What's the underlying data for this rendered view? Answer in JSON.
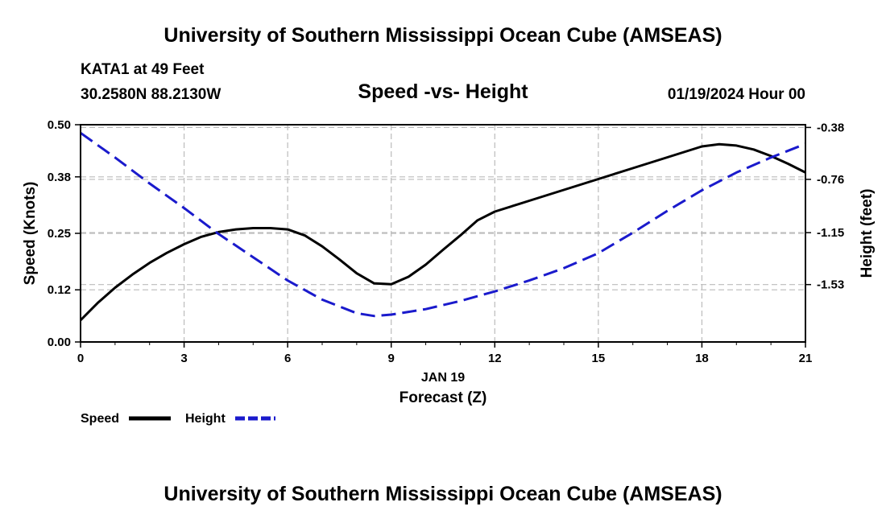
{
  "header": {
    "title": "University of Southern Mississippi Ocean Cube (AMSEAS)",
    "station": "KATA1 at 49 Feet",
    "coords": "30.2580N  88.2130W",
    "subtitle": "Speed -vs- Height",
    "datetime": "01/19/2024 Hour 00"
  },
  "footer": {
    "title": "University of Southern Mississippi Ocean Cube (AMSEAS)"
  },
  "legend": {
    "speed_label": "Speed",
    "height_label": "Height"
  },
  "colors": {
    "speed": "#000000",
    "height": "#1a1acc",
    "grid": "#bbbbbb"
  },
  "chart_data": {
    "type": "line",
    "title": "Speed -vs- Height",
    "xlabel": "Forecast (Z)",
    "xlabel_date": "JAN 19",
    "ylabel": "Speed (Knots)",
    "y2label": "Height (feet)",
    "xlim": [
      0,
      21
    ],
    "ylim": [
      0,
      0.5
    ],
    "y2lim": [
      -1.95,
      -0.36
    ],
    "x_ticks": [
      "0",
      "3",
      "6",
      "9",
      "12",
      "15",
      "18",
      "21"
    ],
    "y_ticks": [
      "0.00",
      "0.12",
      "0.25",
      "0.38",
      "0.50"
    ],
    "y2_ticks": [
      "-0.38",
      "-0.76",
      "-1.15",
      "-1.53"
    ],
    "series": [
      {
        "name": "Speed",
        "axis": "left",
        "style": "solid",
        "x": [
          0,
          0.5,
          1,
          1.5,
          2,
          2.5,
          3,
          3.5,
          4,
          4.5,
          5,
          5.5,
          6,
          6.5,
          7,
          7.5,
          8,
          8.5,
          9,
          9.5,
          10,
          10.5,
          11,
          11.5,
          12,
          13,
          14,
          15,
          16,
          17,
          18,
          18.5,
          19,
          19.5,
          20,
          20.5,
          21
        ],
        "values": [
          0.05,
          0.09,
          0.125,
          0.155,
          0.182,
          0.205,
          0.225,
          0.242,
          0.253,
          0.259,
          0.262,
          0.262,
          0.259,
          0.245,
          0.22,
          0.19,
          0.158,
          0.135,
          0.133,
          0.15,
          0.178,
          0.212,
          0.245,
          0.28,
          0.3,
          0.325,
          0.35,
          0.375,
          0.4,
          0.425,
          0.45,
          0.455,
          0.452,
          0.443,
          0.428,
          0.41,
          0.39
        ]
      },
      {
        "name": "Height",
        "axis": "right",
        "style": "dashed",
        "x": [
          0,
          1,
          2,
          3,
          4,
          5,
          6,
          7,
          8,
          8.5,
          9,
          10,
          11,
          12,
          13,
          14,
          15,
          16,
          17,
          18,
          19,
          20,
          21
        ],
        "values": [
          -0.42,
          -0.6,
          -0.79,
          -0.97,
          -1.16,
          -1.33,
          -1.5,
          -1.64,
          -1.74,
          -1.76,
          -1.75,
          -1.71,
          -1.65,
          -1.58,
          -1.5,
          -1.41,
          -1.3,
          -1.15,
          -0.99,
          -0.84,
          -0.71,
          -0.6,
          -0.5
        ]
      }
    ]
  }
}
